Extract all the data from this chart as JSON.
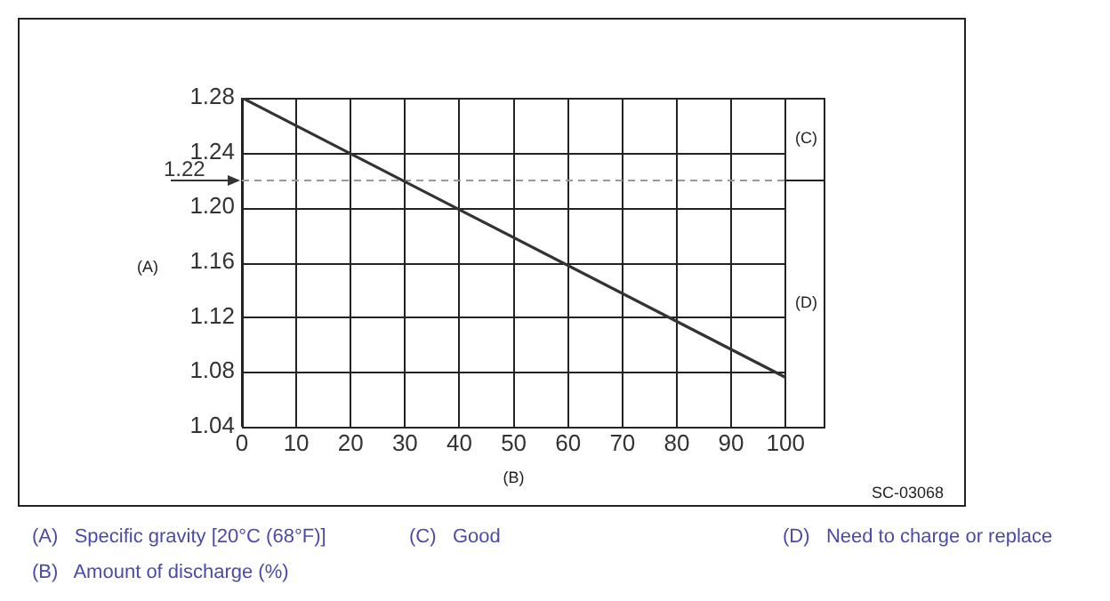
{
  "chart_data": {
    "type": "line",
    "xlabel": "(B)",
    "ylabel": "(A)",
    "x": [
      0,
      100
    ],
    "series": [
      {
        "color": "#333333",
        "values": [
          1.28,
          1.076
        ]
      }
    ],
    "xlim": [
      0,
      107
    ],
    "xticks": [
      0,
      10,
      20,
      30,
      40,
      50,
      60,
      70,
      80,
      90,
      100
    ],
    "ylim": [
      1.04,
      1.28
    ],
    "yticks": [
      1.04,
      1.08,
      1.12,
      1.16,
      {
        "value": 1.2,
        "label": "1.20"
      },
      1.24,
      1.28
    ],
    "grid": true,
    "legend": false,
    "marker": "none",
    "line_style": "solid",
    "ref_lines": [
      {
        "axis": "y",
        "value": 1.22,
        "label": "1.22",
        "color": "#999999",
        "line_style": "dashed"
      }
    ],
    "annotations": [
      "(C)",
      "(D)",
      "SC-03068",
      "(A)   Specific gravity [20°C (68°F)]",
      "(C)   Good",
      "(D)   Need to charge or replace",
      "(B)   Amount of discharge (%)"
    ]
  }
}
